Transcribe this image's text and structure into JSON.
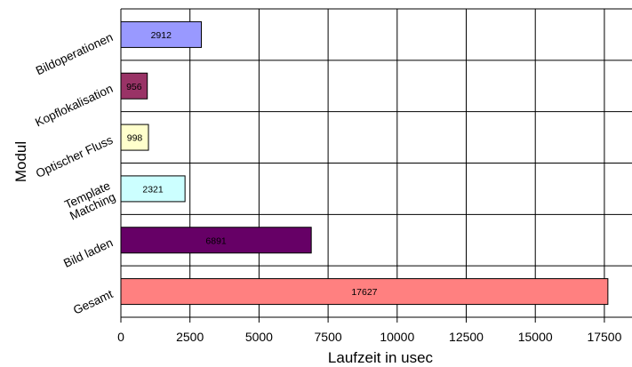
{
  "chart_data": {
    "type": "bar",
    "orientation": "horizontal",
    "title": "",
    "xlabel": "Laufzeit in usec",
    "ylabel": "Modul",
    "xlim": [
      0,
      18500
    ],
    "xticks": [
      0,
      2500,
      5000,
      7500,
      10000,
      12500,
      15000,
      17500
    ],
    "grid": true,
    "legend": "none",
    "categories": [
      [
        "Bildoperationen"
      ],
      [
        "Kopflokalisation"
      ],
      [
        "Optischer Fluss"
      ],
      [
        "Template",
        "Matching"
      ],
      [
        "Bild laden"
      ],
      [
        "Gesamt"
      ]
    ],
    "values": [
      2912,
      956,
      998,
      2321,
      6891,
      17627
    ],
    "data_labels": [
      "2912",
      "956",
      "998",
      "2321",
      "6891",
      "17627"
    ],
    "colors": [
      "#9999ff",
      "#993366",
      "#ffffcc",
      "#ccffff",
      "#660066",
      "#ff8080"
    ]
  }
}
